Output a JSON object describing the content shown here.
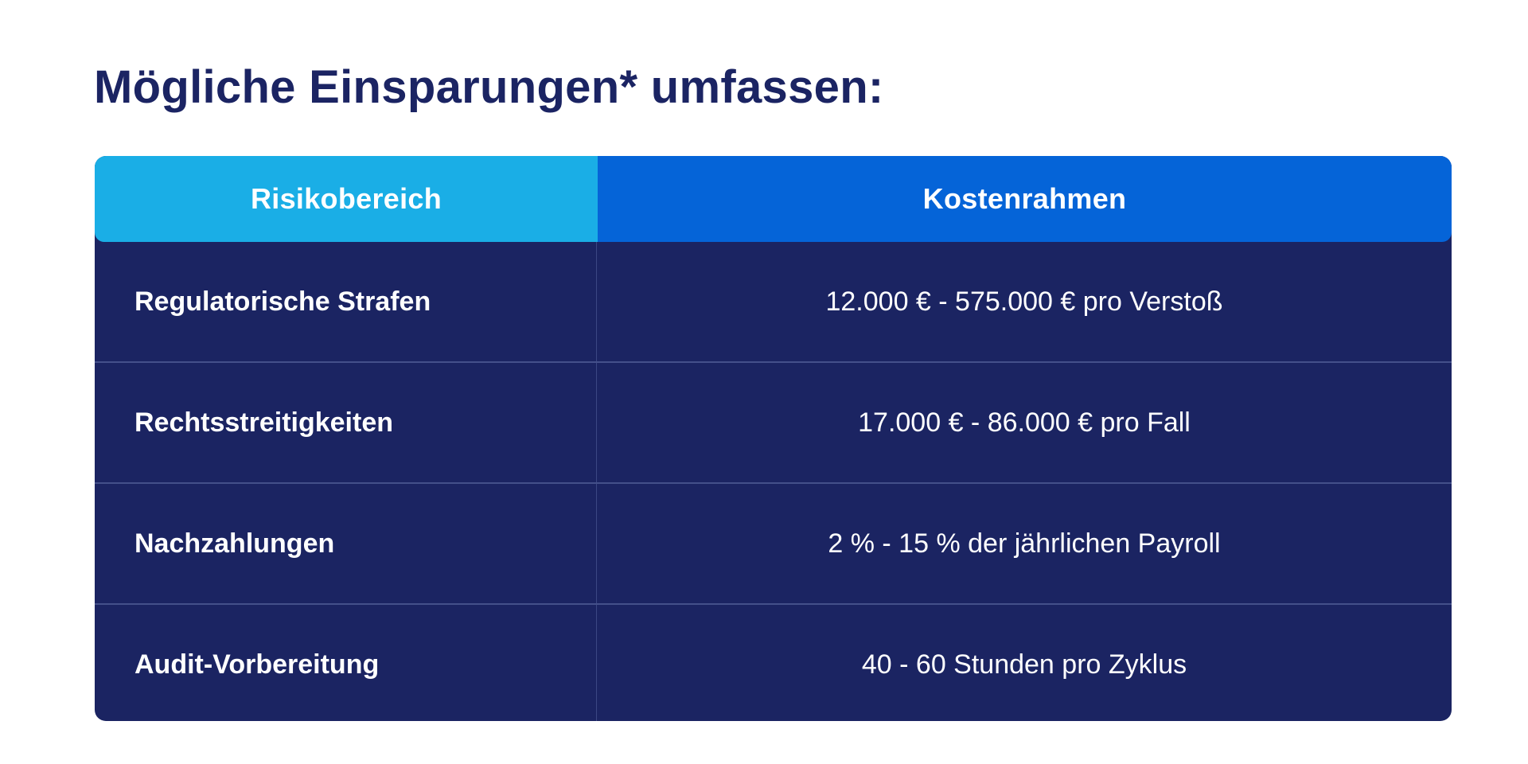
{
  "title": "Mögliche Einsparungen* umfassen:",
  "colors": {
    "title": "#1b2463",
    "header_col1": "#1aaee6",
    "header_col2": "#0564d8",
    "body_background": "#1b2462",
    "divider": "#44508a",
    "text_light": "#ffffff"
  },
  "table": {
    "headers": [
      "Risikobereich",
      "Kostenrahmen"
    ],
    "rows": [
      {
        "area": "Regulatorische Strafen",
        "cost": "12.000 € - 575.000 € pro Verstoß"
      },
      {
        "area": "Rechtsstreitigkeiten",
        "cost": "17.000 € - 86.000 € pro Fall"
      },
      {
        "area": "Nachzahlungen",
        "cost": "2 % - 15 % der jährlichen Payroll"
      },
      {
        "area": "Audit-Vorbereitung",
        "cost": "40 - 60 Stunden pro Zyklus"
      }
    ]
  }
}
